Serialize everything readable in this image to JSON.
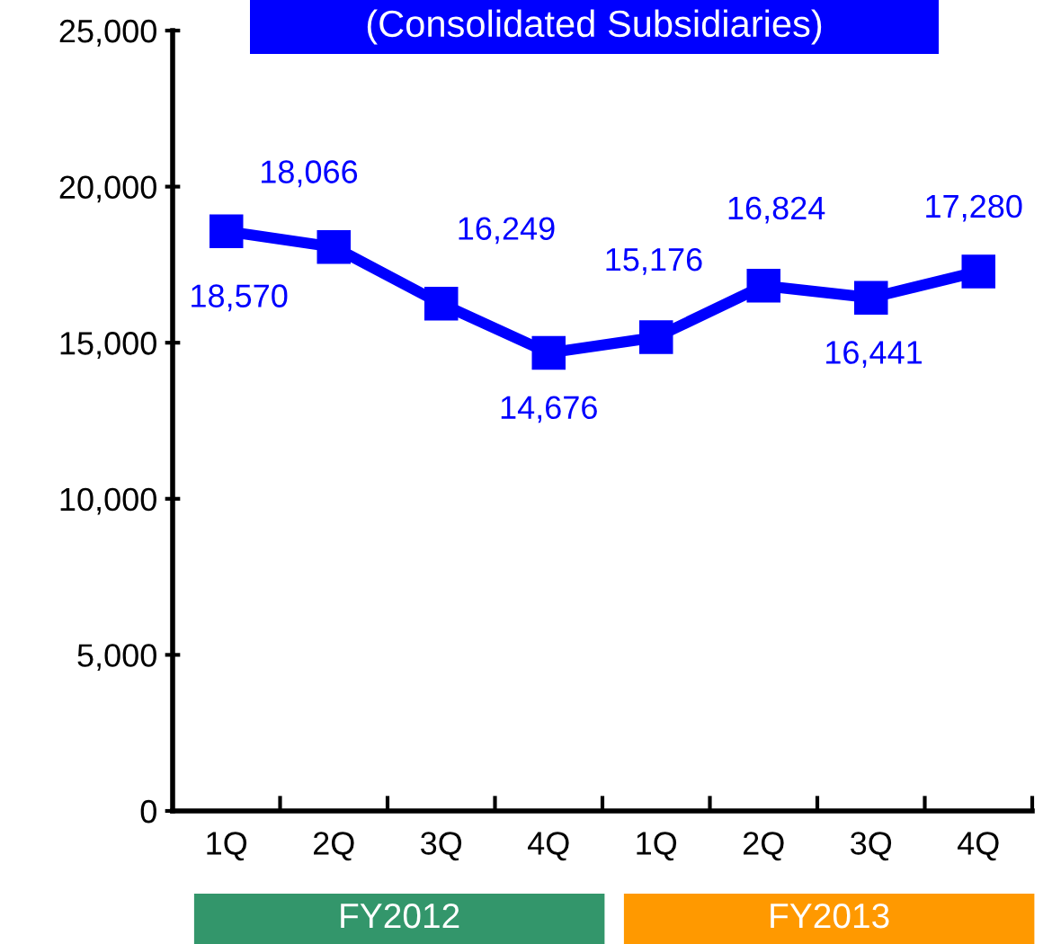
{
  "chart_data": {
    "type": "line",
    "title": "(Consolidated Subsidiaries)",
    "categories": [
      "1Q",
      "2Q",
      "3Q",
      "4Q",
      "1Q",
      "2Q",
      "3Q",
      "4Q"
    ],
    "series": [
      {
        "color": "#0000ff",
        "values": [
          18570,
          18066,
          16249,
          14676,
          15176,
          16824,
          16441,
          17280
        ],
        "value_labels": [
          "18,570",
          "18,066",
          "16,249",
          "14,676",
          "15,176",
          "16,824",
          "16,441",
          "17,280"
        ]
      }
    ],
    "ylim": [
      0,
      25000
    ],
    "yticks": [
      0,
      {
        "value": 5000,
        "label": "5,000"
      },
      {
        "value": 10000,
        "label": "10,000"
      },
      {
        "value": 15000,
        "label": "15,000"
      },
      {
        "value": 20000,
        "label": "20,000"
      },
      {
        "value": 25000,
        "label": "25,000"
      }
    ],
    "marker": "square",
    "line_style": "solid",
    "grid": false,
    "annotations": [
      "FY2012",
      "FY2013"
    ]
  }
}
